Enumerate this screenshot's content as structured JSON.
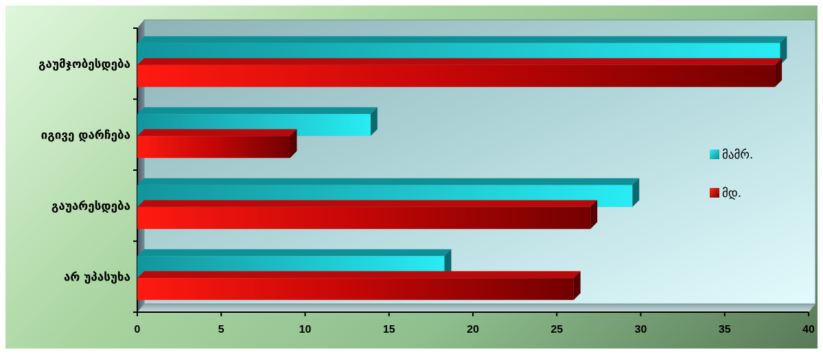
{
  "chart_data": {
    "type": "bar",
    "orientation": "horizontal",
    "categories": [
      "გაუმჯობესდება",
      "იგივე დარჩება",
      "გაუარესდება",
      "არ უპასუხა"
    ],
    "series": [
      {
        "name": "მამრ.",
        "values": [
          38.3,
          13.9,
          29.5,
          18.3
        ],
        "color": "#18d0d8"
      },
      {
        "name": "მდ.",
        "values": [
          38.0,
          9.1,
          27.0,
          26.0
        ],
        "color": "#e01010"
      }
    ],
    "xlim": [
      0,
      40
    ],
    "xticks": [
      "0",
      "5",
      "10",
      "15",
      "20",
      "25",
      "30",
      "35",
      "40"
    ],
    "grid": false,
    "legend_position": "right"
  }
}
